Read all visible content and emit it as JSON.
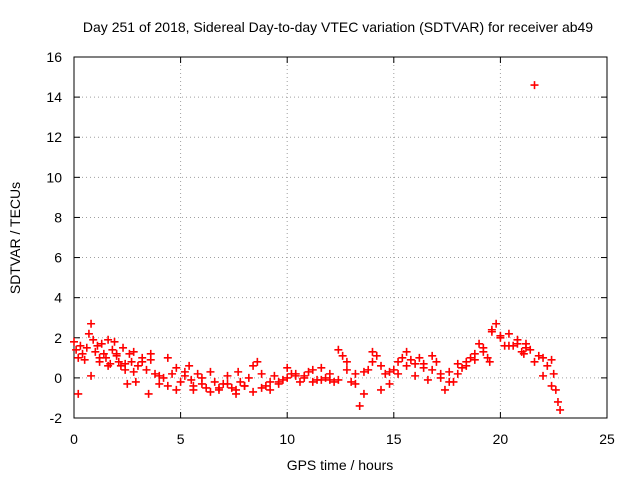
{
  "chart_data": {
    "type": "scatter",
    "title": "Day 251 of 2018, Sidereal Day-to-day VTEC variation (SDTVAR) for receiver ab49",
    "xlabel": "GPS time / hours",
    "ylabel": "SDTVAR / TECUs",
    "xlim": [
      0,
      25
    ],
    "ylim": [
      -2,
      16
    ],
    "xticks": [
      0,
      5,
      10,
      15,
      20,
      25
    ],
    "yticks": [
      -2,
      0,
      2,
      4,
      6,
      8,
      10,
      12,
      14,
      16
    ],
    "grid": true,
    "marker": "+",
    "marker_color": "#ff0000",
    "series": [
      {
        "name": "SDTVAR",
        "x": [
          0.0,
          0.1,
          0.2,
          0.3,
          0.4,
          0.5,
          0.6,
          0.7,
          0.8,
          0.9,
          1.0,
          1.1,
          1.2,
          1.3,
          1.4,
          1.5,
          1.6,
          1.7,
          1.8,
          1.9,
          2.0,
          2.1,
          2.2,
          2.3,
          2.4,
          2.5,
          2.6,
          2.7,
          2.8,
          2.9,
          3.0,
          3.2,
          3.4,
          3.5,
          3.6,
          3.8,
          4.0,
          4.2,
          4.4,
          4.6,
          4.8,
          5.0,
          5.2,
          5.4,
          5.5,
          5.6,
          5.8,
          6.0,
          6.2,
          6.4,
          6.6,
          6.8,
          7.0,
          7.2,
          7.4,
          7.6,
          7.7,
          7.8,
          8.0,
          8.2,
          8.4,
          8.6,
          8.8,
          9.0,
          9.2,
          9.4,
          9.6,
          9.8,
          10.0,
          10.2,
          10.4,
          10.6,
          10.8,
          11.0,
          11.2,
          11.4,
          11.6,
          11.8,
          12.0,
          12.2,
          12.4,
          12.6,
          12.8,
          13.0,
          13.2,
          13.4,
          13.6,
          13.8,
          14.0,
          14.2,
          14.4,
          14.6,
          14.8,
          15.0,
          15.2,
          15.4,
          15.6,
          15.8,
          16.0,
          16.2,
          16.4,
          16.6,
          16.8,
          17.0,
          17.2,
          17.4,
          17.6,
          17.8,
          18.0,
          18.2,
          18.4,
          18.6,
          18.8,
          19.0,
          19.2,
          19.4,
          19.5,
          19.6,
          19.8,
          20.0,
          20.2,
          20.4,
          20.6,
          20.8,
          21.0,
          21.1,
          21.2,
          21.4,
          21.6,
          21.8,
          22.0,
          22.2,
          22.4,
          22.5,
          22.6,
          22.8,
          0.2,
          0.8,
          1.2,
          1.6,
          2.0,
          2.4,
          2.8,
          3.2,
          3.6,
          4.0,
          4.4,
          4.8,
          5.2,
          5.6,
          6.0,
          6.4,
          6.8,
          7.2,
          7.6,
          8.0,
          8.4,
          8.8,
          9.2,
          9.6,
          10.0,
          10.4,
          10.8,
          11.2,
          11.6,
          12.0,
          12.4,
          12.8,
          13.2,
          13.6,
          14.0,
          14.4,
          14.8,
          15.2,
          15.6,
          16.0,
          16.4,
          16.8,
          17.2,
          17.6,
          18.0,
          18.4,
          18.8,
          19.2,
          19.6,
          20.0,
          20.4,
          20.8,
          21.2,
          21.6,
          22.0,
          22.4,
          22.7
        ],
        "y": [
          1.8,
          1.4,
          1.0,
          1.6,
          1.2,
          0.9,
          1.5,
          2.2,
          2.7,
          1.9,
          1.3,
          1.6,
          0.8,
          1.7,
          1.2,
          1.0,
          1.9,
          0.7,
          1.4,
          1.8,
          1.2,
          0.8,
          0.6,
          1.5,
          0.4,
          -0.3,
          1.2,
          0.8,
          0.3,
          -0.2,
          0.6,
          1.0,
          0.4,
          -0.8,
          1.2,
          0.2,
          -0.3,
          0.0,
          -0.4,
          0.2,
          -0.6,
          -0.2,
          0.1,
          0.6,
          -0.1,
          -0.6,
          0.2,
          -0.3,
          -0.5,
          0.3,
          -0.2,
          -0.6,
          -0.3,
          0.1,
          -0.5,
          -0.8,
          0.3,
          -0.2,
          -0.4,
          0.0,
          0.6,
          0.8,
          0.2,
          -0.4,
          -0.2,
          0.1,
          -0.3,
          -0.1,
          0.0,
          0.2,
          0.1,
          -0.2,
          0.0,
          0.3,
          0.4,
          -0.1,
          0.5,
          0.0,
          -0.1,
          -0.2,
          1.4,
          1.1,
          0.8,
          -0.2,
          0.2,
          -1.4,
          -0.8,
          0.4,
          0.8,
          1.1,
          0.6,
          0.2,
          -0.3,
          0.4,
          0.8,
          1.0,
          1.3,
          0.9,
          0.7,
          1.0,
          0.5,
          -0.1,
          0.4,
          0.8,
          0.0,
          -0.6,
          0.3,
          -0.2,
          0.2,
          0.5,
          0.6,
          1.0,
          1.2,
          1.7,
          1.5,
          1.0,
          0.8,
          2.3,
          2.7,
          2.1,
          1.6,
          2.2,
          1.6,
          1.9,
          1.3,
          1.2,
          1.7,
          1.4,
          14.6,
          1.1,
          1.0,
          0.6,
          0.9,
          0.2,
          -0.6,
          -1.6,
          -0.8,
          0.1,
          1.0,
          0.6,
          1.1,
          0.7,
          1.3,
          0.8,
          0.9,
          0.1,
          1.0,
          0.5,
          0.3,
          -0.4,
          0.0,
          -0.7,
          -0.5,
          -0.3,
          -0.6,
          -0.4,
          -0.7,
          -0.5,
          -0.6,
          -0.2,
          0.5,
          0.2,
          0.1,
          -0.2,
          -0.1,
          0.2,
          -0.1,
          0.4,
          -0.3,
          0.3,
          1.3,
          -0.6,
          0.3,
          0.2,
          0.6,
          0.1,
          0.7,
          1.1,
          0.2,
          -0.2,
          0.7,
          0.8,
          0.9,
          1.3,
          2.4,
          2.0,
          1.6,
          1.7,
          1.5,
          0.8,
          0.1,
          -0.4,
          -1.2
        ]
      }
    ]
  }
}
